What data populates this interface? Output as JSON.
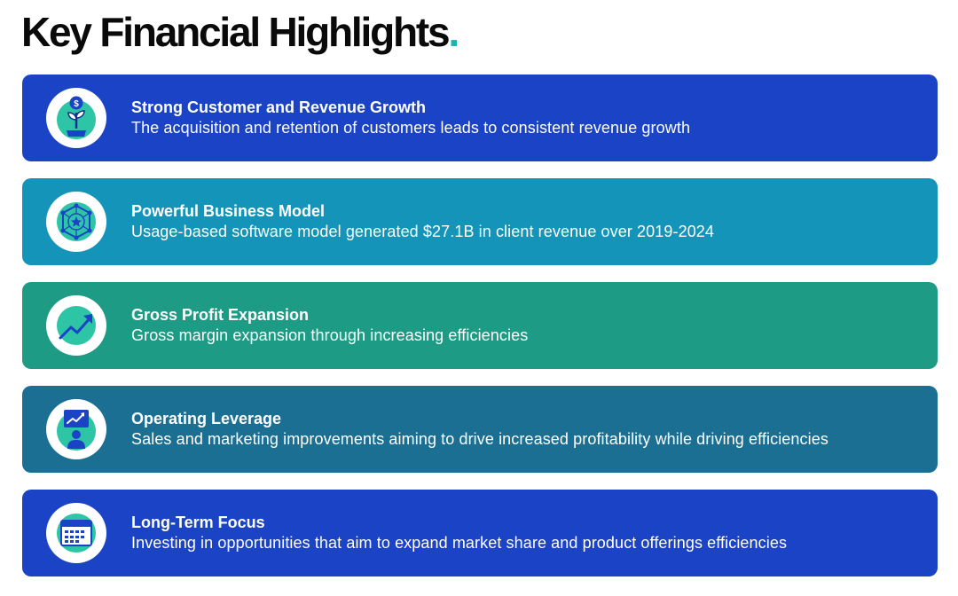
{
  "page": {
    "title": "Key Financial Highlights",
    "title_dot": ".",
    "accent_color": "#14b8b0"
  },
  "highlights": [
    {
      "title": "Strong Customer and Revenue Growth",
      "description": "The acquisition and retention of customers leads to consistent revenue growth",
      "icon": "plant-growth-dollar-icon",
      "color": "#1a43c6"
    },
    {
      "title": "Powerful Business Model",
      "description": "Usage-based software model generated $27.1B in client revenue over 2019-2024",
      "icon": "network-star-icon",
      "color": "#1394b8"
    },
    {
      "title": "Gross Profit Expansion",
      "description": "Gross margin expansion through increasing efficiencies",
      "icon": "trend-up-arrow-icon",
      "color": "#1d9b84"
    },
    {
      "title": "Operating Leverage",
      "description": "Sales and marketing improvements aiming to drive increased profitability while driving efficiencies",
      "icon": "presenter-chart-icon",
      "color": "#1a6f93"
    },
    {
      "title": "Long-Term Focus",
      "description": "Investing in opportunities that aim to expand market share and product offerings efficiencies",
      "icon": "calendar-icon",
      "color": "#1a43c6"
    }
  ]
}
